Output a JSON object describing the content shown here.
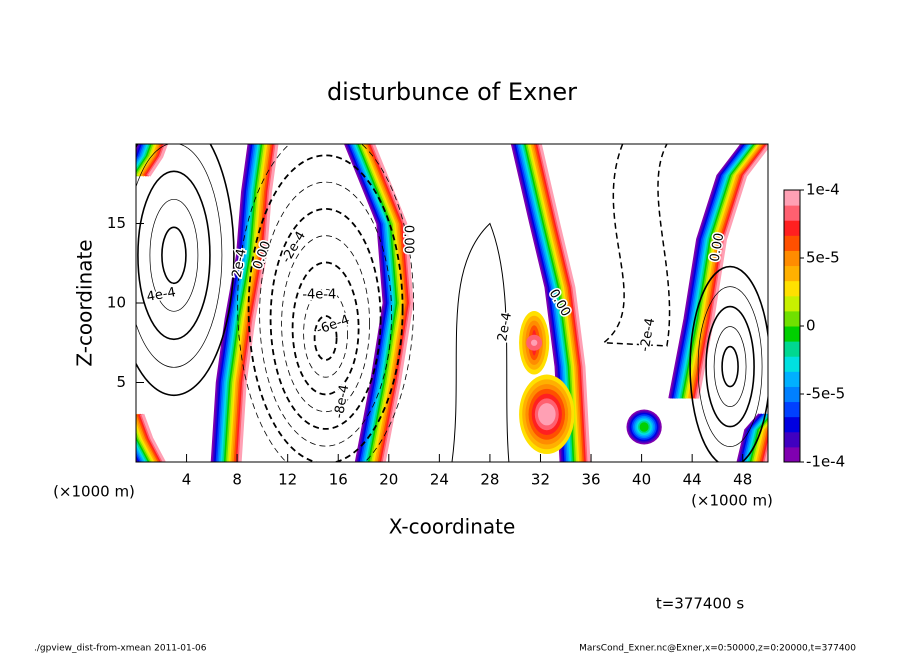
{
  "chart_data": {
    "type": "contour",
    "title": "disturbunce of Exner",
    "x_label": "X-coordinate",
    "y_label": "Z-coordinate",
    "x_unit": "(×1000 m)",
    "y_unit": "(×1000 m)",
    "xlim": [
      0,
      50
    ],
    "xticks": [
      4,
      8,
      12,
      16,
      20,
      24,
      28,
      32,
      36,
      40,
      44,
      48
    ],
    "ylim": [
      0,
      20
    ],
    "yticks": [
      5,
      10,
      15
    ],
    "clim": [
      -0.0001,
      0.0001
    ],
    "cticks": [
      {
        "value": 0.0001,
        "label": "1e-4"
      },
      {
        "value": 5e-05,
        "label": "5e-5"
      },
      0,
      {
        "value": -5e-05,
        "label": "-5e-5"
      },
      {
        "value": -0.0001,
        "label": "-1e-4"
      }
    ],
    "colors": [
      "#8000b0",
      "#4000c0",
      "#0000e0",
      "#0040ff",
      "#0080ff",
      "#00b0ff",
      "#00e0e0",
      "#00d890",
      "#00d000",
      "#70e000",
      "#c8f000",
      "#ffe000",
      "#ffb000",
      "#ff8c00",
      "#ff5000",
      "#ff2020",
      "#ff6070",
      "#ffa0b4"
    ],
    "contour_labels": [
      "2e-4",
      "0.00",
      "-2e-4",
      "-4e-4",
      "-6e-4",
      "-8e-4",
      "4e-4",
      "0.00",
      "2e-4",
      "0.00",
      "-2e-4",
      "0.00"
    ],
    "annotation": "t=377400 s",
    "footer_left": "./gpview_dist-from-xmean  2011-01-06",
    "footer_right": "MarsCond_Exner.nc@Exner,x=0:50000,z=0:20000,t=377400"
  }
}
